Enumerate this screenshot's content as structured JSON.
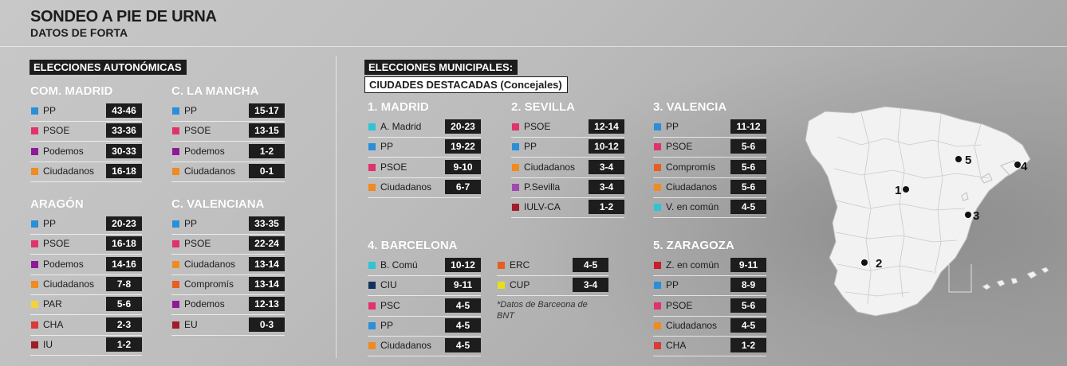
{
  "header": {
    "title": "SONDEO A PIE DE URNA",
    "subtitle": "DATOS DE FORTA"
  },
  "autonomicas": {
    "label": "ELECCIONES AUTONÓMICAS",
    "regions": [
      {
        "name": "COM. MADRID",
        "parties": [
          {
            "party": "PP",
            "value": "43-46",
            "color": "#2a8fd8"
          },
          {
            "party": "PSOE",
            "value": "33-36",
            "color": "#e0336b"
          },
          {
            "party": "Podemos",
            "value": "30-33",
            "color": "#8e1a9a"
          },
          {
            "party": "Ciudadanos",
            "value": "16-18",
            "color": "#f08a22"
          }
        ]
      },
      {
        "name": "C. LA MANCHA",
        "parties": [
          {
            "party": "PP",
            "value": "15-17",
            "color": "#2a8fd8"
          },
          {
            "party": "PSOE",
            "value": "13-15",
            "color": "#e0336b"
          },
          {
            "party": "Podemos",
            "value": "1-2",
            "color": "#8e1a9a"
          },
          {
            "party": "Ciudadanos",
            "value": "0-1",
            "color": "#f08a22"
          }
        ]
      },
      {
        "name": "ARAGÓN",
        "parties": [
          {
            "party": "PP",
            "value": "20-23",
            "color": "#2a8fd8"
          },
          {
            "party": "PSOE",
            "value": "16-18",
            "color": "#e0336b"
          },
          {
            "party": "Podemos",
            "value": "14-16",
            "color": "#8e1a9a"
          },
          {
            "party": "Ciudadanos",
            "value": "7-8",
            "color": "#f08a22"
          },
          {
            "party": "PAR",
            "value": "5-6",
            "color": "#f2d33a"
          },
          {
            "party": "CHA",
            "value": "2-3",
            "color": "#d93a3a"
          },
          {
            "party": "IU",
            "value": "1-2",
            "color": "#a01d2a"
          }
        ]
      },
      {
        "name": "C. VALENCIANA",
        "parties": [
          {
            "party": "PP",
            "value": "33-35",
            "color": "#2a8fd8"
          },
          {
            "party": "PSOE",
            "value": "22-24",
            "color": "#e0336b"
          },
          {
            "party": "Ciudadanos",
            "value": "13-14",
            "color": "#f08a22"
          },
          {
            "party": "Compromís",
            "value": "13-14",
            "color": "#e55e22"
          },
          {
            "party": "Podemos",
            "value": "12-13",
            "color": "#8e1a9a"
          },
          {
            "party": "EU",
            "value": "0-3",
            "color": "#a01d2a"
          }
        ]
      }
    ]
  },
  "municipales": {
    "label": "ELECCIONES MUNICIPALES:",
    "sublabel": "CIUDADES DESTACADAS (Concejales)",
    "cities": [
      {
        "name": "1. MADRID",
        "parties": [
          {
            "party": "A. Madrid",
            "value": "20-23",
            "color": "#2ec4d6"
          },
          {
            "party": "PP",
            "value": "19-22",
            "color": "#2a8fd8"
          },
          {
            "party": "PSOE",
            "value": "9-10",
            "color": "#e0336b"
          },
          {
            "party": "Ciudadanos",
            "value": "6-7",
            "color": "#f08a22"
          }
        ]
      },
      {
        "name": "2. SEVILLA",
        "parties": [
          {
            "party": "PSOE",
            "value": "12-14",
            "color": "#e0336b"
          },
          {
            "party": "PP",
            "value": "10-12",
            "color": "#2a8fd8"
          },
          {
            "party": "Ciudadanos",
            "value": "3-4",
            "color": "#f08a22"
          },
          {
            "party": "P.Sevilla",
            "value": "3-4",
            "color": "#a04ab0"
          },
          {
            "party": "IULV-CA",
            "value": "1-2",
            "color": "#a01d2a"
          }
        ]
      },
      {
        "name": "3. VALENCIA",
        "parties": [
          {
            "party": "PP",
            "value": "11-12",
            "color": "#2a8fd8"
          },
          {
            "party": "PSOE",
            "value": "5-6",
            "color": "#e0336b"
          },
          {
            "party": "Compromís",
            "value": "5-6",
            "color": "#e55e22"
          },
          {
            "party": "Ciudadanos",
            "value": "5-6",
            "color": "#f08a22"
          },
          {
            "party": "V. en común",
            "value": "4-5",
            "color": "#2ec4d6"
          }
        ]
      },
      {
        "name": "4. BARCELONA",
        "parties": [
          {
            "party": "B. Comú",
            "value": "10-12",
            "color": "#2ec4d6"
          },
          {
            "party": "CIU",
            "value": "9-11",
            "color": "#12325c"
          },
          {
            "party": "PSC",
            "value": "4-5",
            "color": "#e0336b"
          },
          {
            "party": "PP",
            "value": "4-5",
            "color": "#2a8fd8"
          },
          {
            "party": "Ciudadanos",
            "value": "4-5",
            "color": "#f08a22"
          }
        ],
        "extra": [
          {
            "party": "ERC",
            "value": "4-5",
            "color": "#e55e22"
          },
          {
            "party": "CUP",
            "value": "3-4",
            "color": "#e6df1a"
          }
        ],
        "note": "*Datos de Barceona de BNT"
      },
      {
        "name": "5. ZARAGOZA",
        "parties": [
          {
            "party": "Z. en común",
            "value": "9-11",
            "color": "#c81e2a"
          },
          {
            "party": "PP",
            "value": "8-9",
            "color": "#2a8fd8"
          },
          {
            "party": "PSOE",
            "value": "5-6",
            "color": "#e0336b"
          },
          {
            "party": "Ciudadanos",
            "value": "4-5",
            "color": "#f08a22"
          },
          {
            "party": "CHA",
            "value": "1-2",
            "color": "#d93a3a"
          }
        ]
      }
    ]
  },
  "map": {
    "markers": [
      "1",
      "2",
      "3",
      "4",
      "5"
    ]
  }
}
